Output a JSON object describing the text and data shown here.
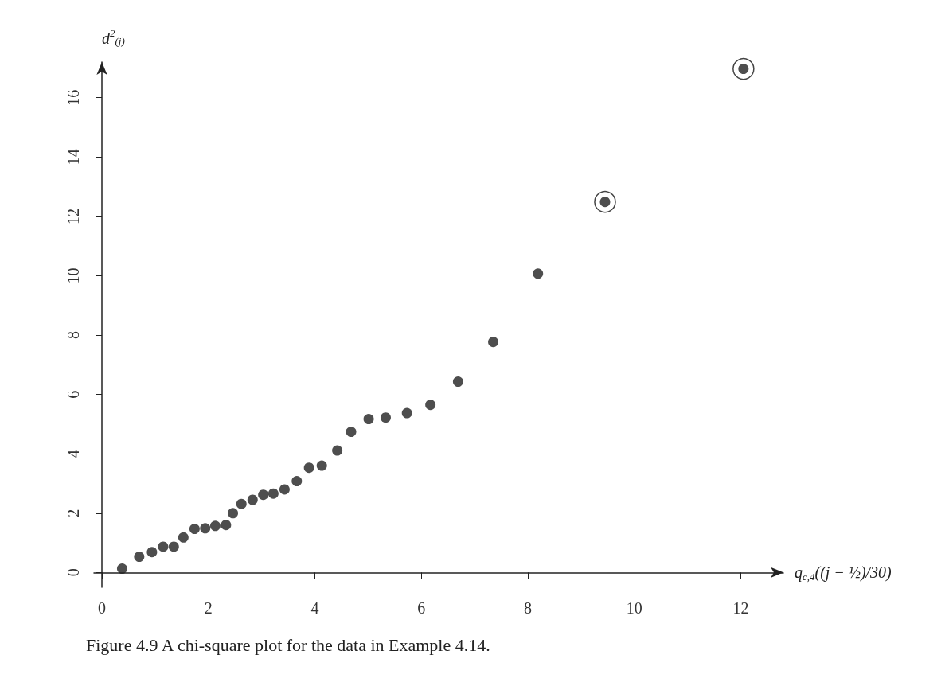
{
  "chart_data": {
    "type": "scatter",
    "xlabel": "q$_{c,4}$((j − ½)/30)",
    "ylabel": "d$^{2}$$_{(j)}$",
    "annotations": [
      "Figure 4.9 A chi-square plot for the data in Example 4.14."
    ],
    "xlim": [
      -0.15,
      12.8
    ],
    "ylim": [
      -0.5,
      17.2
    ],
    "xticks": [
      0,
      2,
      4,
      6,
      8,
      10,
      12
    ],
    "yticks": [
      0,
      2,
      4,
      6,
      8,
      10,
      12,
      14,
      16
    ],
    "grid": false,
    "marker": "circle",
    "series": [
      {
        "color": "#222222",
        "x": [
          0.38,
          0.7,
          0.94,
          1.15,
          1.35,
          1.53,
          1.74,
          1.94,
          2.13,
          2.33,
          2.46,
          2.62,
          2.83,
          3.03,
          3.22,
          3.43,
          3.66,
          3.89,
          4.13,
          4.42,
          4.68,
          5.01,
          5.33,
          5.73,
          6.17,
          6.69,
          7.35,
          8.19,
          9.45,
          12.05
        ],
        "values": [
          0.13,
          0.53,
          0.69,
          0.87,
          0.87,
          1.18,
          1.47,
          1.49,
          1.57,
          1.6,
          2.0,
          2.31,
          2.45,
          2.62,
          2.66,
          2.8,
          3.08,
          3.53,
          3.6,
          4.11,
          4.74,
          5.17,
          5.22,
          5.37,
          5.65,
          6.43,
          7.77,
          10.07,
          12.49,
          16.97
        ]
      },
      {
        "color": "#444444",
        "x": [
          9.45,
          12.05
        ],
        "values": [
          12.49,
          16.97
        ]
      }
    ]
  }
}
